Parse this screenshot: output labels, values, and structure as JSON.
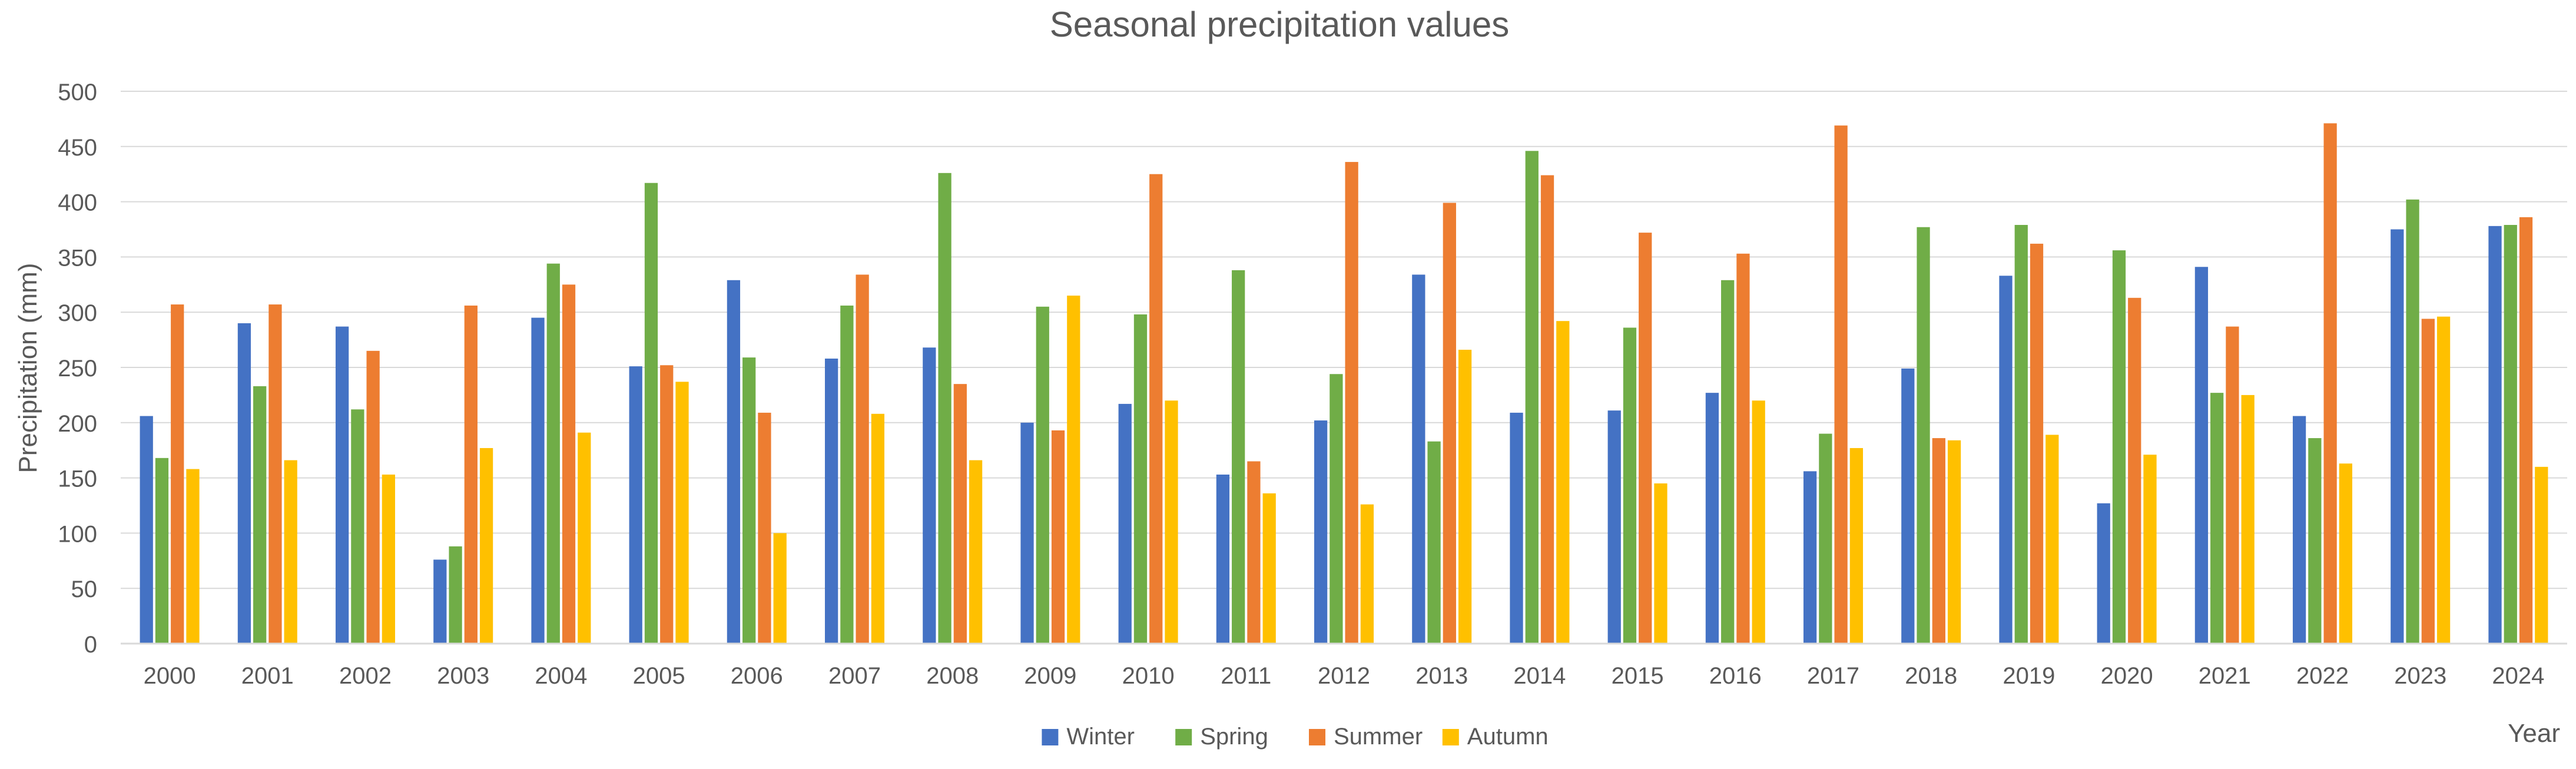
{
  "chart_data": {
    "type": "bar",
    "title": "Seasonal precipitation values",
    "xlabel": "Year",
    "ylabel": "Precipitation (mm)",
    "ylim": [
      0,
      500
    ],
    "yticks": [
      0,
      50,
      100,
      150,
      200,
      250,
      300,
      350,
      400,
      450,
      500
    ],
    "grid": true,
    "legend": "bottom-center",
    "categories": [
      "2000",
      "2001",
      "2002",
      "2003",
      "2004",
      "2005",
      "2006",
      "2007",
      "2008",
      "2009",
      "2010",
      "2011",
      "2012",
      "2013",
      "2014",
      "2015",
      "2016",
      "2017",
      "2018",
      "2019",
      "2020",
      "2021",
      "2022",
      "2023",
      "2024"
    ],
    "series": [
      {
        "name": "Winter",
        "color": "#4472C4",
        "values": [
          206,
          290,
          287,
          76,
          295,
          251,
          329,
          258,
          268,
          200,
          217,
          153,
          202,
          334,
          209,
          211,
          227,
          156,
          249,
          333,
          127,
          341,
          206,
          375,
          378
        ]
      },
      {
        "name": "Spring",
        "color": "#70AD47",
        "values": [
          168,
          233,
          212,
          88,
          344,
          417,
          259,
          306,
          426,
          305,
          298,
          338,
          244,
          183,
          446,
          286,
          329,
          190,
          377,
          379,
          356,
          227,
          186,
          402,
          379
        ]
      },
      {
        "name": "Summer",
        "color": "#ED7D31",
        "values": [
          307,
          307,
          265,
          306,
          325,
          252,
          209,
          334,
          235,
          193,
          425,
          165,
          436,
          399,
          424,
          372,
          353,
          469,
          186,
          362,
          313,
          287,
          471,
          294,
          386
        ]
      },
      {
        "name": "Autumn",
        "color": "#FFC000",
        "values": [
          158,
          166,
          153,
          177,
          191,
          237,
          100,
          208,
          166,
          315,
          220,
          136,
          126,
          266,
          292,
          145,
          220,
          177,
          184,
          189,
          171,
          225,
          163,
          296,
          160
        ]
      }
    ]
  }
}
